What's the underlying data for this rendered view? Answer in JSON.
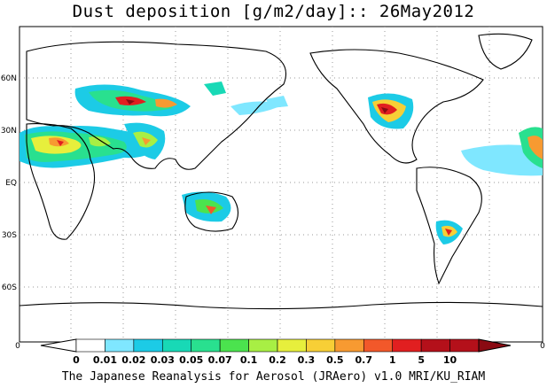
{
  "title": "Dust deposition [g/m2/day]:: 26May2012",
  "footer": "The Japanese Reanalysis for Aerosol (JRAero) v1.0 MRI/KU_RIAM",
  "lat_labels": [
    "60N",
    "30N",
    "EQ",
    "30S",
    "60S"
  ],
  "lon_edge_left": "0",
  "lon_edge_right": "0",
  "colorbar": {
    "labels": [
      "0",
      "0.01",
      "0.02",
      "0.03",
      "0.05",
      "0.07",
      "0.1",
      "0.2",
      "0.3",
      "0.5",
      "0.7",
      "1",
      "5",
      "10"
    ],
    "colors": [
      "#ffffff",
      "#ffffff",
      "#7fe7ff",
      "#1ccbe6",
      "#18d9b6",
      "#29e08f",
      "#4be34e",
      "#a8ef44",
      "#e7ef3c",
      "#f7cf36",
      "#f79a31",
      "#f2582a",
      "#e11f20",
      "#b4101a",
      "#8a0a12"
    ]
  }
}
